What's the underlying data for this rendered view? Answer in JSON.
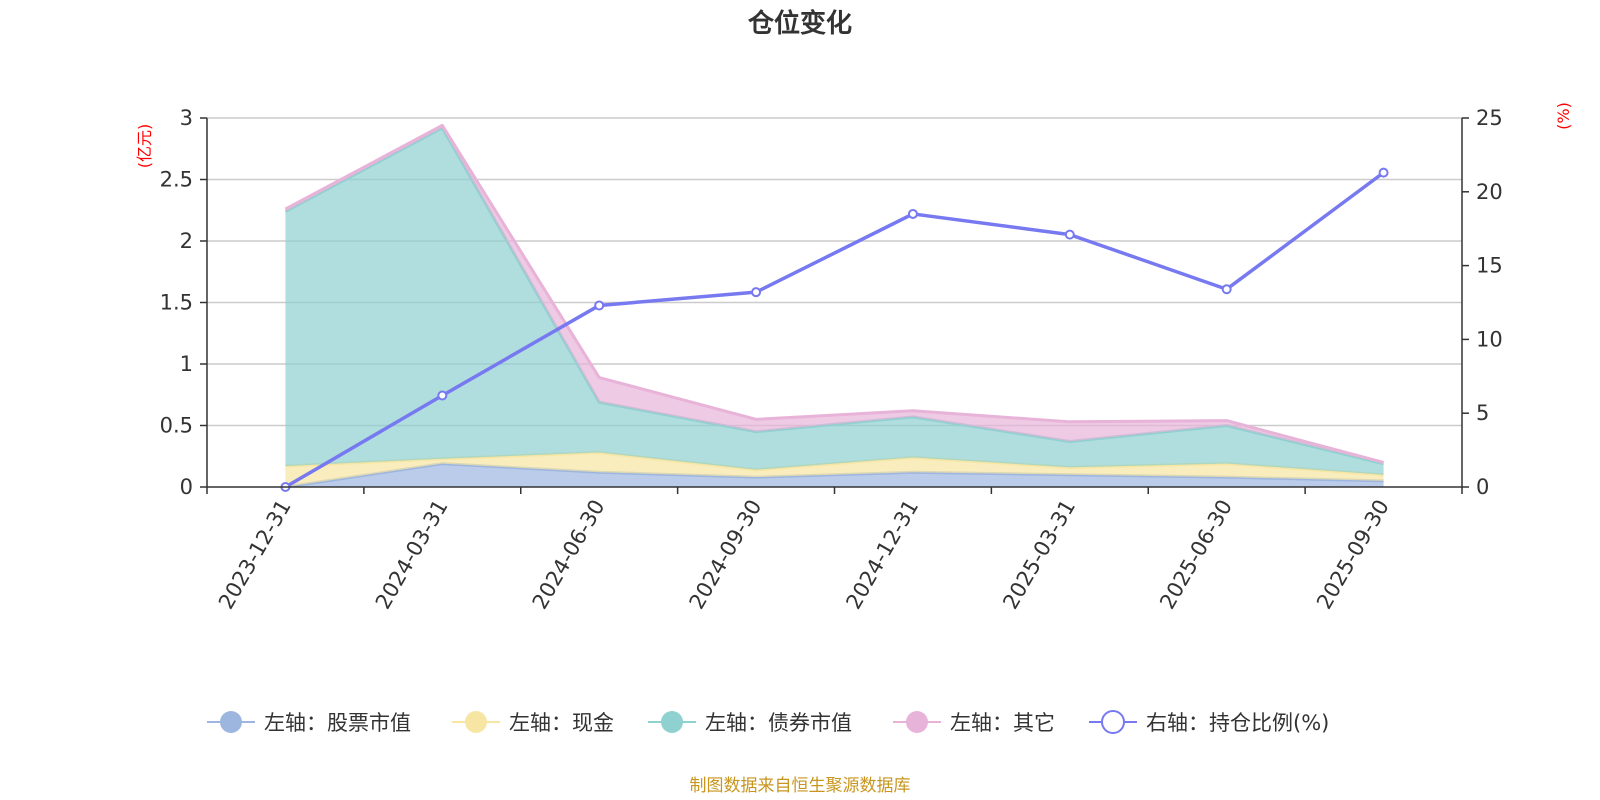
{
  "title": "仓位变化",
  "left_unit": "(亿元)",
  "right_unit": "(%)",
  "source": "制图数据来自恒生聚源数据库",
  "colors": {
    "stock": "#9db6e0",
    "cash": "#f7e6a3",
    "bond": "#8fd0d0",
    "other": "#e8b3d8",
    "ratio": "#7779f0"
  },
  "chart_data": {
    "type": "area",
    "title": "仓位变化",
    "categories": [
      "2023-12-31",
      "2024-03-31",
      "2024-06-30",
      "2024-09-30",
      "2024-12-31",
      "2025-03-31",
      "2025-06-30",
      "2025-09-30"
    ],
    "y_left": {
      "label": "(亿元)",
      "min": 0,
      "max": 3,
      "ticks": [
        0,
        0.5,
        1,
        1.5,
        2,
        2.5,
        3
      ],
      "tick_labels": [
        "0",
        "0.5",
        "1",
        "1.5",
        "2",
        "2.5",
        "3"
      ]
    },
    "y_right": {
      "label": "(%)",
      "min": 0,
      "max": 25,
      "ticks": [
        0,
        5,
        10,
        15,
        20,
        25
      ],
      "tick_labels": [
        "0",
        "5",
        "10",
        "15",
        "20",
        "25"
      ]
    },
    "stacked_series": [
      {
        "key": "stock",
        "name": "左轴：股票市值",
        "values": [
          0.0,
          0.19,
          0.12,
          0.08,
          0.12,
          0.1,
          0.08,
          0.05
        ]
      },
      {
        "key": "cash",
        "name": "左轴：现金",
        "values": [
          0.17,
          0.04,
          0.16,
          0.06,
          0.12,
          0.06,
          0.11,
          0.05
        ]
      },
      {
        "key": "bond",
        "name": "左轴：债券市值",
        "values": [
          2.07,
          2.69,
          0.41,
          0.31,
          0.33,
          0.21,
          0.31,
          0.09
        ]
      },
      {
        "key": "other",
        "name": "左轴：其它",
        "values": [
          0.02,
          0.02,
          0.2,
          0.1,
          0.05,
          0.16,
          0.04,
          0.01
        ]
      }
    ],
    "line_series": {
      "key": "ratio",
      "name": "右轴：持仓比例(%)",
      "axis": "right",
      "values": [
        0.0,
        6.2,
        12.3,
        13.2,
        18.5,
        17.1,
        13.4,
        21.3
      ]
    },
    "legend_position": "bottom",
    "grid": true
  }
}
